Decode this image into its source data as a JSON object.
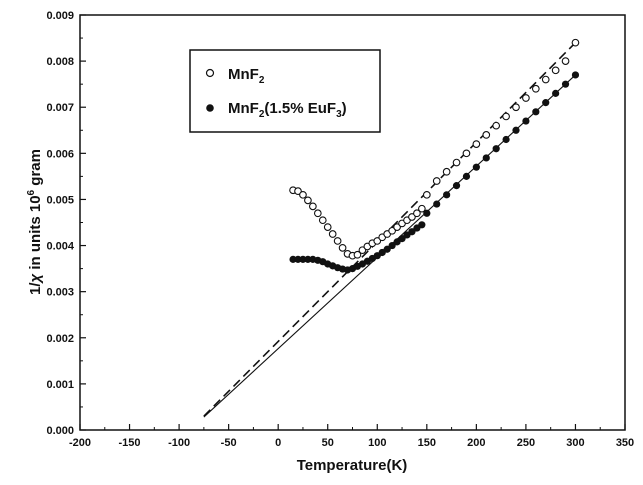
{
  "chart_data": {
    "type": "scatter",
    "xlabel": "Temperature(K)",
    "ylabel_parts": {
      "prefix": "1/",
      "chi": "χ",
      "middle": " in units 10",
      "exponent": "6",
      "suffix": " gram"
    },
    "xlim": [
      -200,
      350
    ],
    "ylim": [
      0.0,
      0.009
    ],
    "xticks": [
      "-200",
      "-150",
      "-100",
      "-50",
      "0",
      "50",
      "100",
      "150",
      "200",
      "250",
      "300",
      "350"
    ],
    "yticks": [
      "0.000",
      "0.001",
      "0.002",
      "0.003",
      "0.004",
      "0.005",
      "0.006",
      "0.007",
      "0.008",
      "0.009"
    ],
    "grid": false,
    "legend_position": "top-left",
    "legend": [
      {
        "marker": "open-circle",
        "base": "MnF",
        "sub": "2",
        "rest": ""
      },
      {
        "marker": "filled-circle",
        "base": "MnF",
        "sub": "2",
        "rest": "(1.5% EuF",
        "sub2": "3",
        "rest2": ")"
      }
    ],
    "series": [
      {
        "marker": "open-circle",
        "x": [
          15,
          20,
          25,
          30,
          35,
          40,
          45,
          50,
          55,
          60,
          65,
          70,
          75,
          80,
          85,
          90,
          95,
          100,
          105,
          110,
          115,
          120,
          125,
          130,
          135,
          140,
          145,
          150,
          160,
          170,
          180,
          190,
          200,
          210,
          220,
          230,
          240,
          250,
          260,
          270,
          280,
          290,
          300
        ],
        "y": [
          0.0052,
          0.00518,
          0.0051,
          0.00498,
          0.00485,
          0.0047,
          0.00455,
          0.0044,
          0.00425,
          0.0041,
          0.00395,
          0.00382,
          0.00378,
          0.0038,
          0.0039,
          0.00398,
          0.00405,
          0.0041,
          0.00418,
          0.00425,
          0.00432,
          0.0044,
          0.00448,
          0.00455,
          0.00462,
          0.0047,
          0.0048,
          0.0051,
          0.0054,
          0.0056,
          0.0058,
          0.006,
          0.0062,
          0.0064,
          0.0066,
          0.0068,
          0.007,
          0.0072,
          0.0074,
          0.0076,
          0.0078,
          0.008,
          0.0084
        ]
      },
      {
        "marker": "filled-circle",
        "x": [
          15,
          20,
          25,
          30,
          35,
          40,
          45,
          50,
          55,
          60,
          65,
          70,
          75,
          80,
          85,
          90,
          95,
          100,
          105,
          110,
          115,
          120,
          125,
          130,
          135,
          140,
          145,
          150,
          160,
          170,
          180,
          190,
          200,
          210,
          220,
          230,
          240,
          250,
          260,
          270,
          280,
          290,
          300
        ],
        "y": [
          0.0037,
          0.0037,
          0.0037,
          0.0037,
          0.0037,
          0.00368,
          0.00365,
          0.0036,
          0.00356,
          0.00352,
          0.00349,
          0.00347,
          0.0035,
          0.00355,
          0.0036,
          0.00366,
          0.00372,
          0.00378,
          0.00385,
          0.00392,
          0.004,
          0.00408,
          0.00415,
          0.00423,
          0.0043,
          0.00438,
          0.00445,
          0.0047,
          0.0049,
          0.0051,
          0.0053,
          0.0055,
          0.0057,
          0.0059,
          0.0061,
          0.0063,
          0.0065,
          0.0067,
          0.0069,
          0.0071,
          0.0073,
          0.0075,
          0.0077
        ]
      }
    ],
    "fit_lines": [
      {
        "style": "dashed",
        "x": [
          -75,
          300
        ],
        "y": [
          0.0003,
          0.0084
        ]
      },
      {
        "style": "solid",
        "x": [
          -75,
          300
        ],
        "y": [
          0.00028,
          0.0077
        ]
      }
    ],
    "colors": {
      "axis": "#111111",
      "marker": "#111111",
      "background": "#ffffff"
    }
  }
}
